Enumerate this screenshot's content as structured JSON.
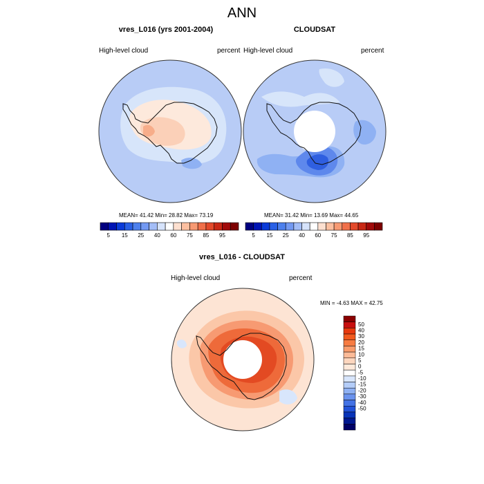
{
  "title": "ANN",
  "panels": [
    {
      "title": "vres_L016 (yrs 2001-2004)",
      "left_label": "High-level cloud",
      "right_label": "percent",
      "stats": "MEAN=  41.42  Min=  28.82  Max=  73.19"
    },
    {
      "title": "CLOUDSAT",
      "left_label": "High-level cloud",
      "right_label": "percent",
      "stats": "MEAN=  31.42  Min=  13.69  Max=  44.65"
    }
  ],
  "diff_panel": {
    "title": "vres_L016 - CLOUDSAT",
    "left_label": "High-level cloud",
    "right_label": "percent",
    "stats": "MIN =  -4.63 MAX =  42.75"
  },
  "colorbar_top": {
    "colors": [
      "#000080",
      "#0014b4",
      "#0b3bd9",
      "#2960e6",
      "#4d80ed",
      "#7399f2",
      "#a3bdf7",
      "#d6e3fb",
      "#ffffff",
      "#fde0d0",
      "#fbbfa0",
      "#f79a73",
      "#f0704a",
      "#e34a2b",
      "#c92815",
      "#a10a0a",
      "#7d0000"
    ],
    "tick_labels": [
      "5",
      "15",
      "25",
      "40",
      "60",
      "75",
      "85",
      "95"
    ]
  },
  "colorbar_diff": {
    "colors": [
      "#8b0000",
      "#c80f0f",
      "#e8390e",
      "#f25a1e",
      "#f77c42",
      "#fa9c6c",
      "#fcbb98",
      "#fdd6be",
      "#fee9da",
      "#ffffff",
      "#d8e6fc",
      "#b4cdf8",
      "#8fb1f3",
      "#6b93ee",
      "#4372e5",
      "#2252d8",
      "#0833b8",
      "#001890",
      "#000066"
    ],
    "tick_labels": [
      "50",
      "40",
      "30",
      "20",
      "15",
      "10",
      "5",
      "0",
      "-5",
      "-10",
      "-15",
      "-20",
      "-30",
      "-40",
      "-50"
    ]
  },
  "map_colors": {
    "base_blue": "#b8ccf6",
    "light_blue": "#d7e5fa",
    "pale_peach": "#fde9dc",
    "peach": "#fbd0b8",
    "salmon": "#f7ad8a",
    "mid_blue": "#8fb1f3",
    "blue": "#5e88ec",
    "deep_blue": "#2f5fe0",
    "diff_base": "#fde4d4",
    "diff_light": "#fbc7a8",
    "diff_mid": "#f79a72",
    "diff_orange": "#ee6a3a",
    "diff_red": "#e34a22",
    "diff_blue": "#d8e6fc"
  }
}
